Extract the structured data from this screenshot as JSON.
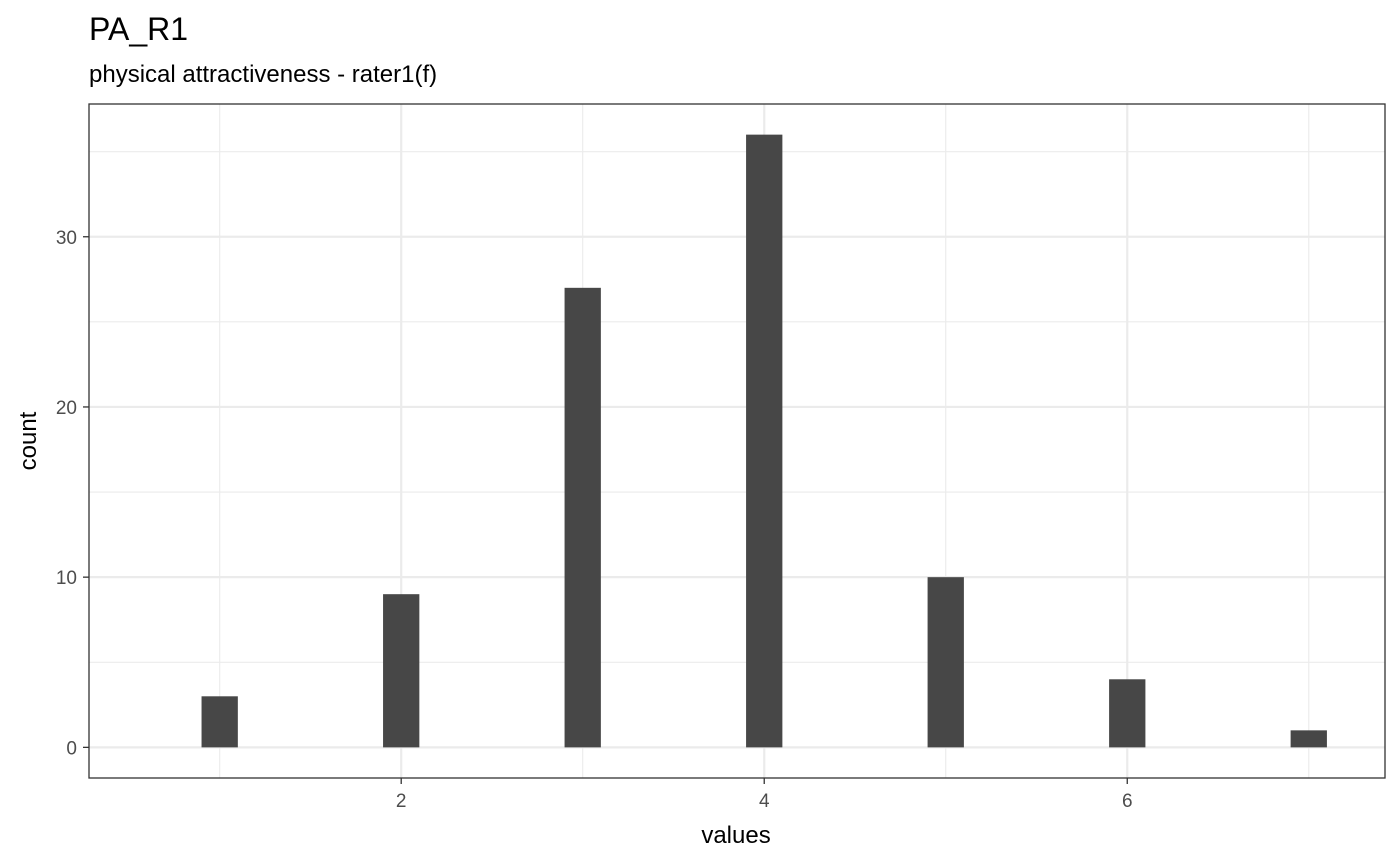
{
  "chart_data": {
    "type": "bar",
    "title": "PA_R1",
    "subtitle": "physical attractiveness - rater1(f)",
    "xlabel": "values",
    "ylabel": "count",
    "x": [
      1,
      2,
      3,
      4,
      5,
      6,
      7
    ],
    "values": [
      3,
      9,
      27,
      36,
      10,
      4,
      1
    ],
    "xlim": [
      0.28,
      7.42
    ],
    "ylim": [
      -1.8,
      37.8
    ],
    "xticks": [
      2,
      4,
      6
    ],
    "yticks": [
      0,
      10,
      20,
      30
    ],
    "xtick_labels": [
      "2",
      "4",
      "6"
    ],
    "ytick_labels": [
      "0",
      "10",
      "20",
      "30"
    ],
    "grid": true,
    "bar_color": "#474747",
    "grid_color": "#ebebeb"
  }
}
